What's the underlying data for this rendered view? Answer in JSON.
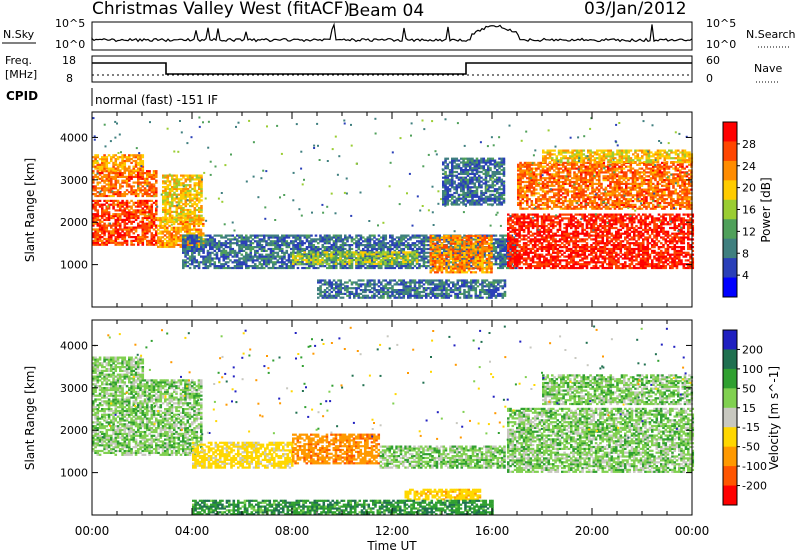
{
  "header": {
    "title": "Christmas Valley West (fitACF)",
    "beam": "Beam 04",
    "date": "03/Jan/2012"
  },
  "status_panel": {
    "nsky_label": "N.Sky",
    "nsearch_label": "N.Search",
    "freq_label_1": "Freq.",
    "freq_label_2": "[MHz]",
    "nave_label": "Nave",
    "cpid_label": "CPID",
    "cpid_text": "normal (fast) -151 IF",
    "nsky_ticks": [
      "10^5",
      "10^0"
    ],
    "nsearch_ticks": [
      "10^5",
      "10^0"
    ],
    "freq_ticks": [
      "18",
      "8"
    ],
    "nave_ticks": [
      "60",
      "0"
    ]
  },
  "x_ticks": [
    "00:00",
    "04:00",
    "08:00",
    "12:00",
    "16:00",
    "20:00",
    "00:00"
  ],
  "colors": {
    "power": [
      "#0000ff",
      "#2a3fb8",
      "#3f7f7f",
      "#4fa05a",
      "#9acd32",
      "#ffcc00",
      "#ff8c00",
      "#ff4500",
      "#ff0000"
    ],
    "velocity": [
      "#2020c0",
      "#207050",
      "#30a030",
      "#80d050",
      "#c8c8c0",
      "#ffd700",
      "#ff9900",
      "#ff5500",
      "#ff0000"
    ]
  },
  "chart_data": [
    {
      "type": "heatmap",
      "name": "power",
      "xlabel": "Time UT",
      "ylabel": "Slant Range [km]",
      "colorbar_label": "Power [dB]",
      "xlim": [
        0,
        24
      ],
      "ylim": [
        0,
        4600
      ],
      "yticks": [
        1000,
        2000,
        3000,
        4000
      ],
      "colorbar_ticks": [
        4,
        8,
        12,
        16,
        20,
        24,
        28
      ],
      "colorbar_range": [
        0,
        32
      ],
      "regions": [
        {
          "t0": 0.0,
          "t1": 2.6,
          "r0": 1450,
          "r1": 2500,
          "v": 27
        },
        {
          "t0": 0.0,
          "t1": 2.6,
          "r0": 2600,
          "r1": 3200,
          "v": 25
        },
        {
          "t0": 0.0,
          "t1": 2.0,
          "r0": 3200,
          "r1": 3600,
          "v": 22
        },
        {
          "t0": 2.6,
          "t1": 4.4,
          "r0": 1400,
          "r1": 2100,
          "v": 22
        },
        {
          "t0": 2.8,
          "t1": 4.4,
          "r0": 2000,
          "r1": 3100,
          "v": 20
        },
        {
          "t0": 3.6,
          "t1": 17.0,
          "r0": 900,
          "r1": 1700,
          "v": 8
        },
        {
          "t0": 8.0,
          "t1": 13.0,
          "r0": 1000,
          "r1": 1300,
          "v": 16
        },
        {
          "t0": 13.5,
          "t1": 16.0,
          "r0": 800,
          "r1": 1700,
          "v": 23
        },
        {
          "t0": 14.0,
          "t1": 16.5,
          "r0": 2400,
          "r1": 3500,
          "v": 8
        },
        {
          "t0": 9.0,
          "t1": 16.5,
          "r0": 200,
          "r1": 650,
          "v": 8
        },
        {
          "t0": 16.6,
          "t1": 24.0,
          "r0": 900,
          "r1": 2200,
          "v": 29
        },
        {
          "t0": 17.0,
          "t1": 24.0,
          "r0": 2300,
          "r1": 3400,
          "v": 25
        },
        {
          "t0": 18.0,
          "t1": 24.0,
          "r0": 3400,
          "r1": 3700,
          "v": 20
        }
      ]
    },
    {
      "type": "heatmap",
      "name": "velocity",
      "xlabel": "Time UT",
      "ylabel": "Slant Range [km]",
      "colorbar_label": "Velocity [m s^-1]",
      "xlim": [
        0,
        24
      ],
      "ylim": [
        0,
        4600
      ],
      "yticks": [
        1000,
        2000,
        3000,
        4000
      ],
      "colorbar_ticks": [
        200,
        100,
        50,
        15,
        -15,
        -50,
        -100,
        -200
      ],
      "colorbar_range": [
        -250,
        250
      ],
      "regions": [
        {
          "t0": 0.0,
          "t1": 4.4,
          "r0": 1400,
          "r1": 3200,
          "v": 0
        },
        {
          "t0": 0.0,
          "t1": 2.0,
          "r0": 3200,
          "r1": 3700,
          "v": 0
        },
        {
          "t0": 4.0,
          "t1": 8.0,
          "r0": 1100,
          "r1": 1700,
          "v": -70
        },
        {
          "t0": 8.0,
          "t1": 11.5,
          "r0": 1200,
          "r1": 1900,
          "v": -180
        },
        {
          "t0": 11.5,
          "t1": 16.5,
          "r0": 1100,
          "r1": 1600,
          "v": 0
        },
        {
          "t0": 12.5,
          "t1": 15.5,
          "r0": 350,
          "r1": 600,
          "v": -80
        },
        {
          "t0": 4.0,
          "t1": 16.0,
          "r0": 0,
          "r1": 350,
          "v": 40
        },
        {
          "t0": 16.6,
          "t1": 24.0,
          "r0": 1000,
          "r1": 2500,
          "v": 0
        },
        {
          "t0": 18.0,
          "t1": 24.0,
          "r0": 2600,
          "r1": 3300,
          "v": 0
        }
      ]
    }
  ]
}
